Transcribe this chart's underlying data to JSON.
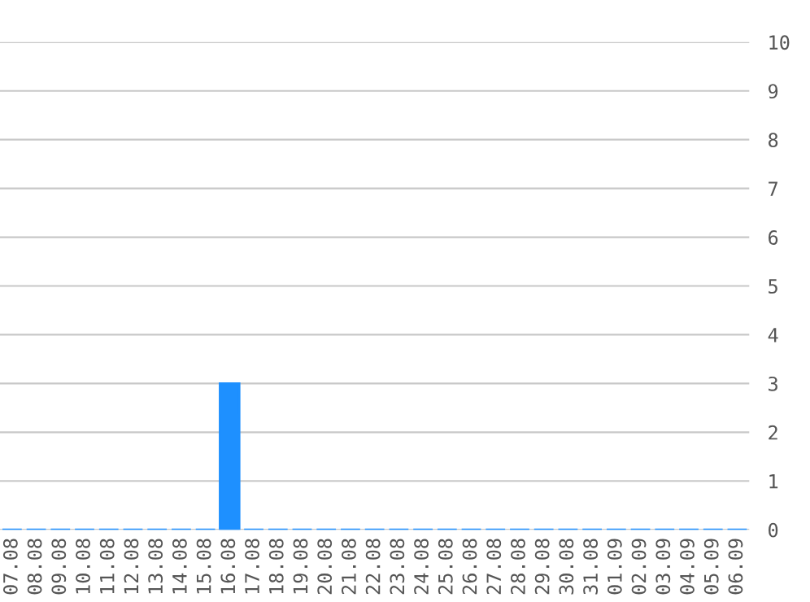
{
  "chart_data": {
    "type": "bar",
    "categories": [
      "07.08",
      "08.08",
      "09.08",
      "10.08",
      "11.08",
      "12.08",
      "13.08",
      "14.08",
      "15.08",
      "16.08",
      "17.08",
      "18.08",
      "19.08",
      "20.08",
      "21.08",
      "22.08",
      "23.08",
      "24.08",
      "25.08",
      "26.08",
      "27.08",
      "28.08",
      "29.08",
      "30.08",
      "31.08",
      "01.09",
      "02.09",
      "03.09",
      "04.09",
      "05.09",
      "06.09"
    ],
    "values": [
      0,
      0,
      0,
      0,
      0,
      0,
      0,
      0,
      0,
      3,
      0,
      0,
      0,
      0,
      0,
      0,
      0,
      0,
      0,
      0,
      0,
      0,
      0,
      0,
      0,
      0,
      0,
      0,
      0,
      0,
      0
    ],
    "color": "#1e90ff",
    "ylim": [
      0,
      10
    ],
    "yticks": [
      0,
      1,
      2,
      3,
      4,
      5,
      6,
      7,
      8,
      9,
      10
    ],
    "grid": "y",
    "legend": false
  }
}
